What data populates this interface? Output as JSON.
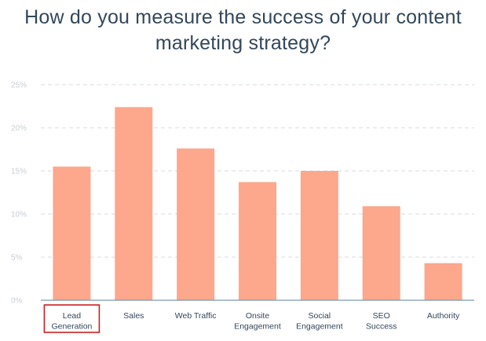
{
  "title_lines": [
    "How do you measure the success of your content",
    "marketing strategy?"
  ],
  "highlight_color": "#cc1f1f",
  "chart_data": {
    "type": "bar",
    "categories": [
      [
        "Lead",
        "Generation"
      ],
      [
        "Sales"
      ],
      [
        "Web Traffic"
      ],
      [
        "Onsite",
        "Engagement"
      ],
      [
        "Social",
        "Engagement"
      ],
      [
        "SEO",
        "Success"
      ],
      [
        "Authority"
      ]
    ],
    "values": [
      15.5,
      22.4,
      17.6,
      13.7,
      15.0,
      10.9,
      4.3
    ],
    "ylim": [
      0,
      25
    ],
    "yticks": [
      0,
      5,
      10,
      15,
      20,
      25
    ],
    "ytick_labels": [
      "0%",
      "5%",
      "10%",
      "15%",
      "20%",
      "25%"
    ],
    "bar_color": "#fda78c",
    "grid": true,
    "highlighted_category_index": 0
  }
}
